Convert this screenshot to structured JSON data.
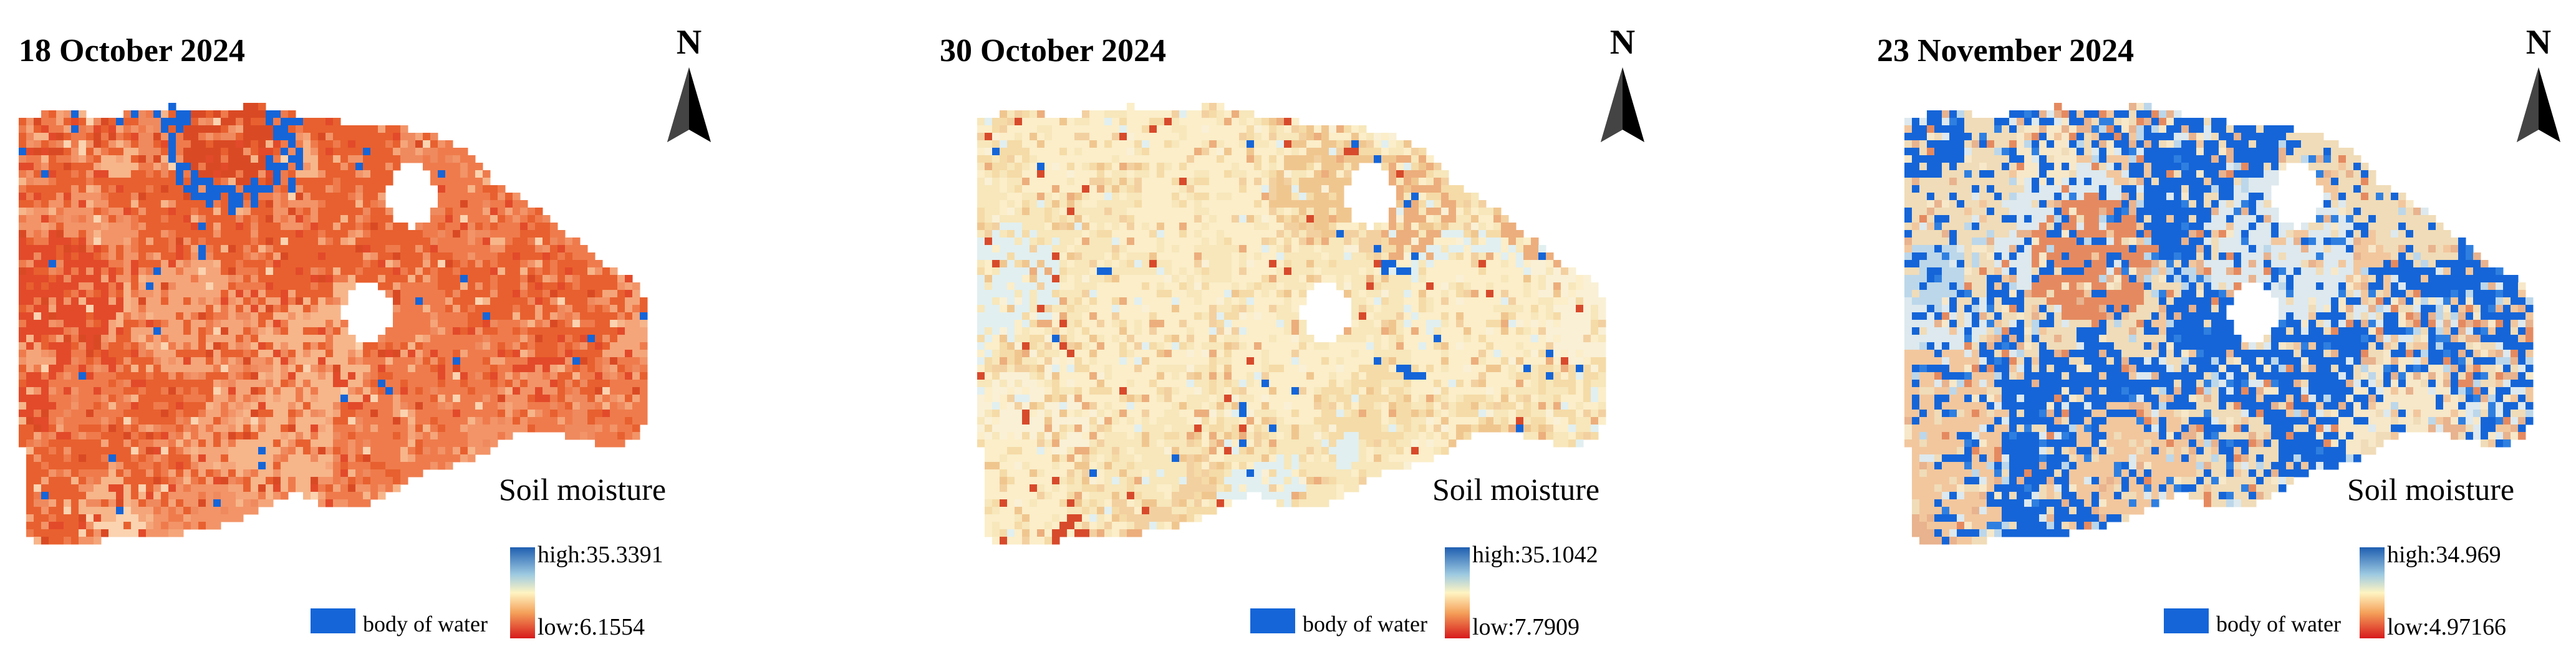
{
  "panels": [
    {
      "title": "18 October 2024",
      "north_label": "N",
      "legend_title": "Soil moisture",
      "high_label": "high:35.3391",
      "low_label": "low:6.1554",
      "water_label": "body of water",
      "dominant_tone": "dry"
    },
    {
      "title": "30 October 2024",
      "north_label": "N",
      "legend_title": "Soil moisture",
      "high_label": "high:35.1042",
      "low_label": "low:7.7909",
      "water_label": "body of water",
      "dominant_tone": "moderate"
    },
    {
      "title": "23 November 2024",
      "north_label": "N",
      "legend_title": "Soil moisture",
      "high_label": "high:34.969",
      "low_label": "low:4.97166",
      "water_label": "body of water",
      "dominant_tone": "wet"
    }
  ],
  "colors": {
    "water": "#1565d8",
    "colorbar_top": "#1f5fb0",
    "colorbar_mid_high": "#9ecae1",
    "colorbar_mid": "#fff4c2",
    "colorbar_mid_low": "#f4a05a",
    "colorbar_bottom": "#d7191c",
    "dry_base": "#ec7a4e",
    "moderate_base": "#f6e4b6",
    "wet_base": "#e8c9a0"
  },
  "icons": {
    "north_arrow": "north-arrow-icon"
  }
}
